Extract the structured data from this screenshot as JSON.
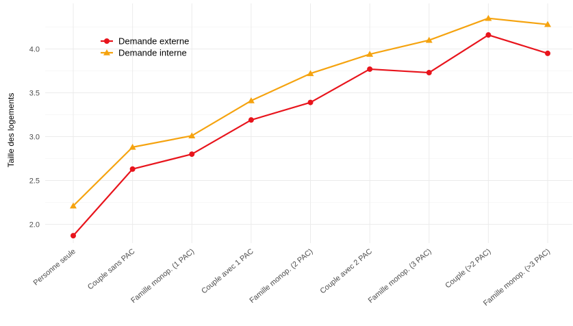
{
  "chart_data": {
    "type": "line",
    "title": "",
    "xlabel": "",
    "ylabel": "Taille des logements",
    "categories": [
      "Personne seule",
      "Couple sans PAC",
      "Famille monop. (1 PAC)",
      "Couple avec 1 PAC",
      "Famille monop. (2 PAC)",
      "Couple avec 2 PAC",
      "Famille monop. (3 PAC)",
      "Couple (>2 PAC)",
      "Famille monop. (>3 PAC)"
    ],
    "series": [
      {
        "name": "Demande externe",
        "color": "#e8141c",
        "marker": "circle",
        "values": [
          1.87,
          2.63,
          2.8,
          3.19,
          3.39,
          3.77,
          3.73,
          4.16,
          3.95
        ]
      },
      {
        "name": "Demande interne",
        "color": "#f5a30f",
        "marker": "triangle",
        "values": [
          2.21,
          2.88,
          3.01,
          3.41,
          3.72,
          3.94,
          4.1,
          4.35,
          4.28
        ]
      }
    ],
    "yticks": [
      "2.0",
      "2.5",
      "3.0",
      "3.5",
      "4.0"
    ],
    "ylim": [
      1.75,
      4.42
    ],
    "grid": true,
    "legend_position": "top-left"
  }
}
